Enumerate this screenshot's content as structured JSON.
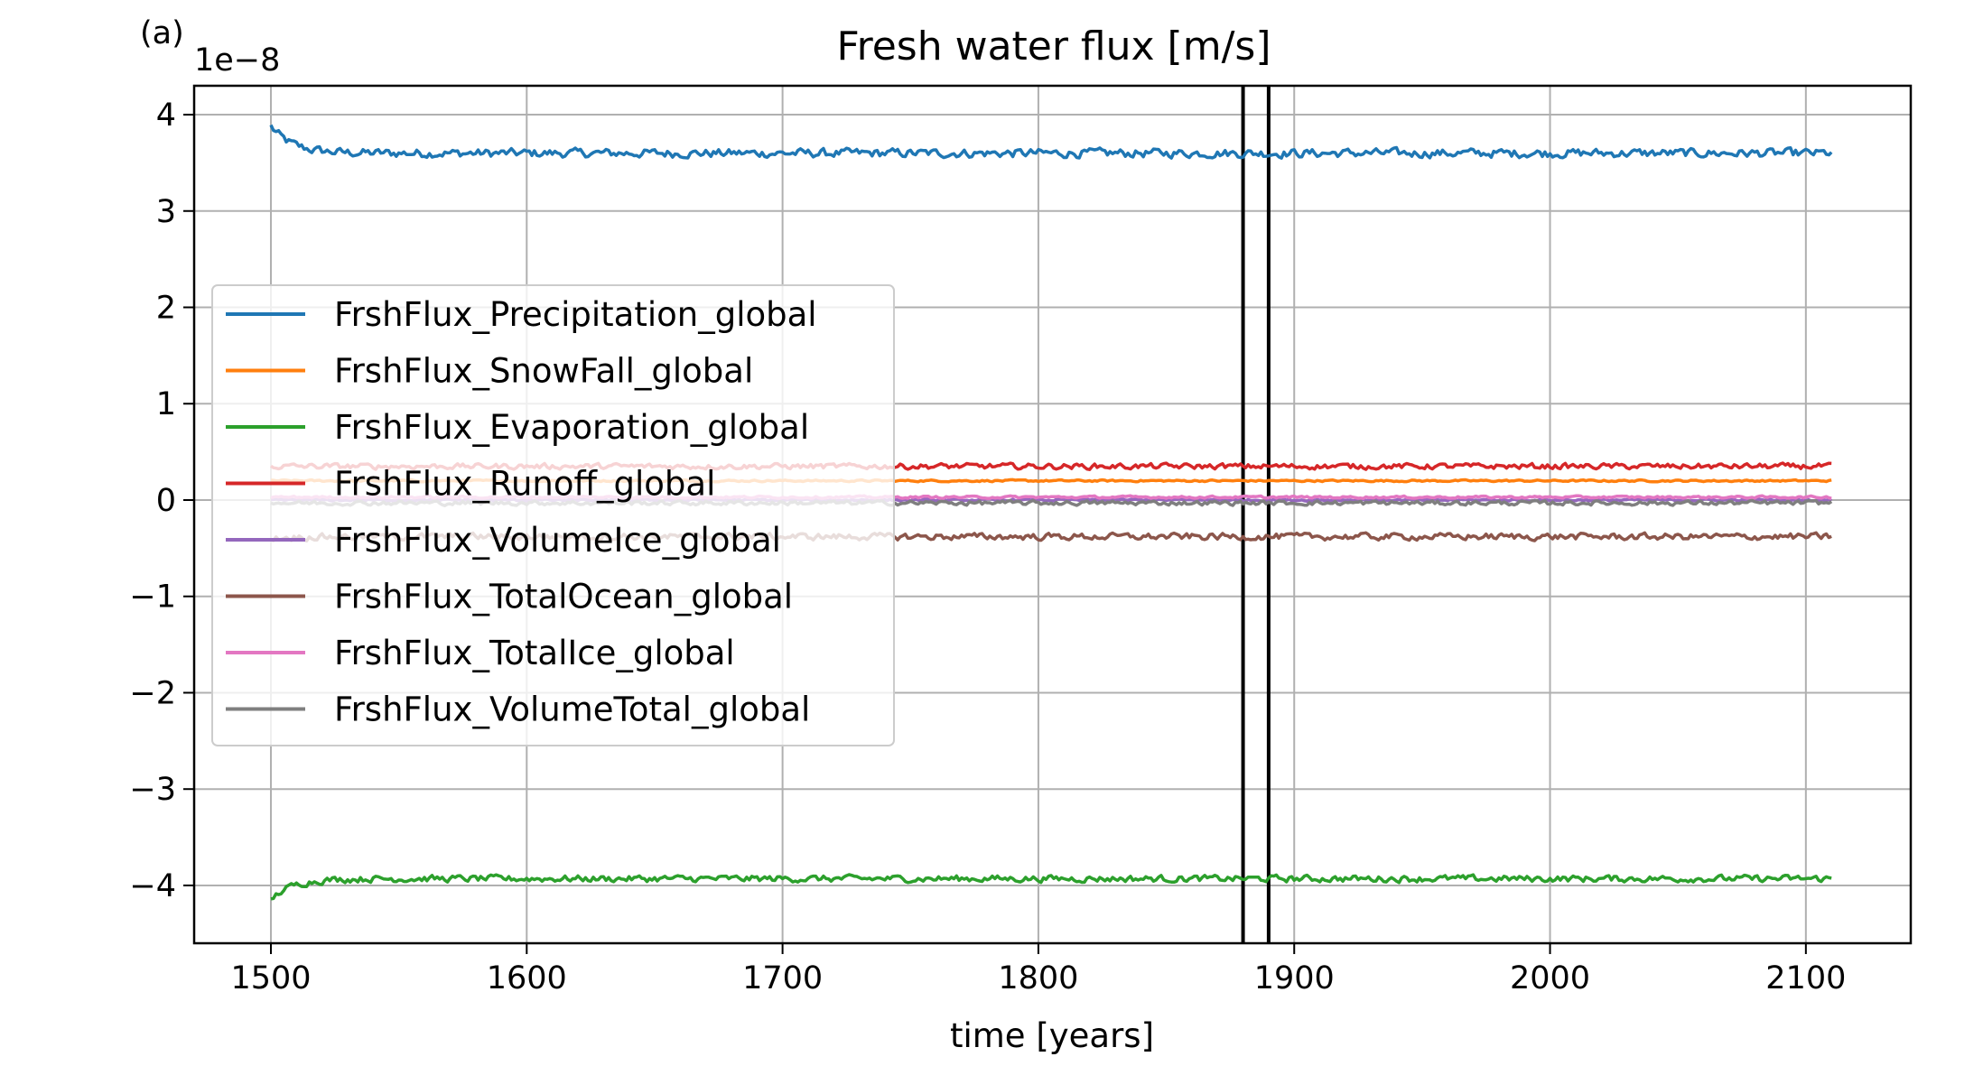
{
  "panel_label": "(a)",
  "chart_data": {
    "type": "line",
    "title": "Fresh water flux [m/s]",
    "xlabel": "time [years]",
    "ylabel": "",
    "y_scale_label": "1e−8",
    "y_scale_factor": 1e-08,
    "xlim": [
      1470,
      2141
    ],
    "ylim": [
      -4.6,
      4.3
    ],
    "x_ticks": [
      1500,
      1600,
      1700,
      1800,
      1900,
      2000,
      2100
    ],
    "x_tick_labels": [
      "1500",
      "1600",
      "1700",
      "1800",
      "1900",
      "2000",
      "2100"
    ],
    "y_ticks": [
      4,
      3,
      2,
      1,
      0,
      -1,
      -2,
      -3,
      -4
    ],
    "y_tick_labels": [
      "4",
      "3",
      "2",
      "1",
      "0",
      "−1",
      "−2",
      "−3",
      "−4"
    ],
    "grid": true,
    "legend_position": "center-left",
    "x_range": [
      1500,
      2110
    ],
    "vertical_lines": [
      1880,
      1890
    ],
    "series": [
      {
        "name": "FrshFlux_Precipitation_global",
        "color": "#1f77b4",
        "start": 3.88,
        "end": 3.6,
        "decay": 8,
        "noise": 0.04
      },
      {
        "name": "FrshFlux_SnowFall_global",
        "color": "#ff7f0e",
        "start": 0.2,
        "end": 0.2,
        "decay": 8,
        "noise": 0.008
      },
      {
        "name": "FrshFlux_Evaporation_global",
        "color": "#2ca02c",
        "start": -4.15,
        "end": -3.93,
        "decay": 8,
        "noise": 0.03
      },
      {
        "name": "FrshFlux_Runoff_global",
        "color": "#d62728",
        "start": 0.35,
        "end": 0.35,
        "decay": 8,
        "noise": 0.025
      },
      {
        "name": "FrshFlux_VolumeIce_global",
        "color": "#9467bd",
        "start": 0.0,
        "end": 0.0,
        "decay": 8,
        "noise": 0.01
      },
      {
        "name": "FrshFlux_TotalOcean_global",
        "color": "#8c564b",
        "start": -0.4,
        "end": -0.38,
        "decay": 8,
        "noise": 0.03
      },
      {
        "name": "FrshFlux_TotalIce_global",
        "color": "#e377c2",
        "start": 0.03,
        "end": 0.03,
        "decay": 8,
        "noise": 0.01
      },
      {
        "name": "FrshFlux_VolumeTotal_global",
        "color": "#7f7f7f",
        "start": -0.03,
        "end": -0.03,
        "decay": 8,
        "noise": 0.02
      }
    ]
  }
}
